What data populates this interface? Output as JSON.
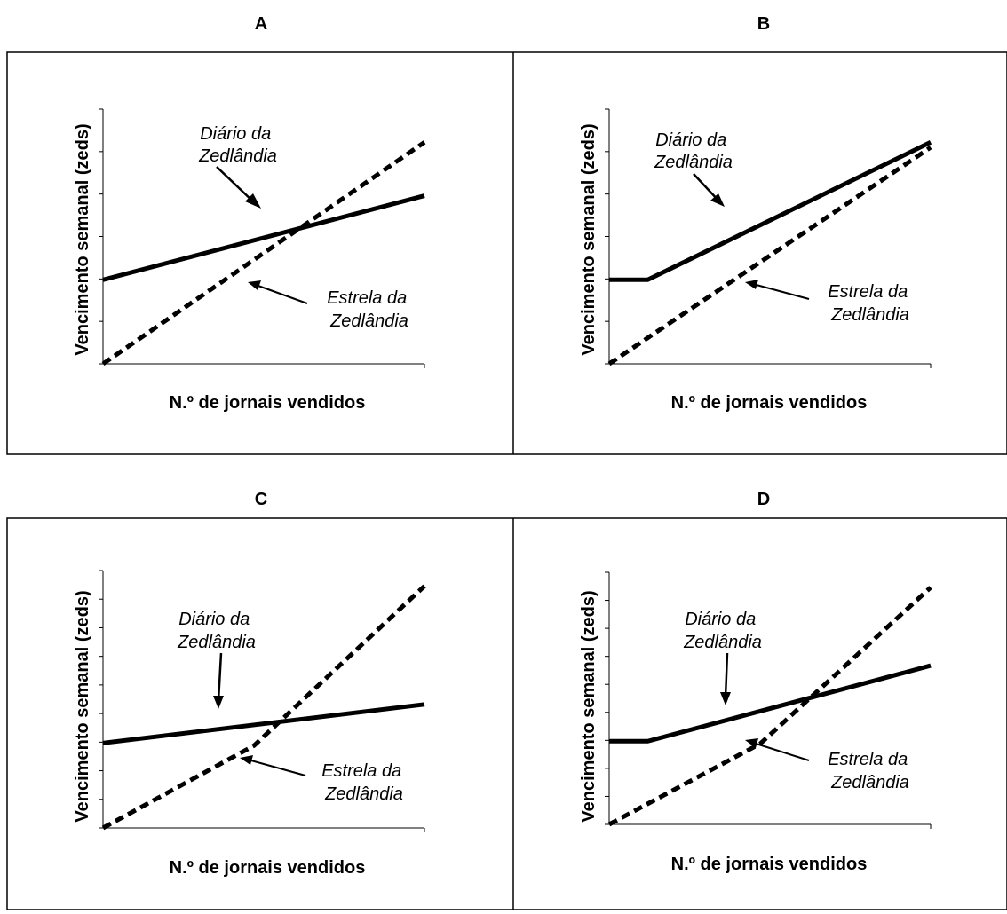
{
  "figure": {
    "panel_labels": [
      "A",
      "B",
      "C",
      "D"
    ],
    "ylabel": "Vencimento semanal (zeds)",
    "xlabel": "N.º de jornais vendidos",
    "series_names": {
      "diario": [
        "Diário da",
        "Zedlândia"
      ],
      "estrela": [
        "Estrela da",
        "Zedlândia"
      ]
    }
  },
  "chart_data": [
    {
      "type": "line",
      "panel": "A",
      "xlim": [
        0,
        100
      ],
      "ylim": [
        0,
        100
      ],
      "yticks": 7,
      "series": [
        {
          "key": "diario",
          "style": "solid",
          "x": [
            0,
            100
          ],
          "y": [
            33,
            66
          ]
        },
        {
          "key": "estrela",
          "style": "dashed",
          "x": [
            0,
            100
          ],
          "y": [
            0,
            87
          ]
        }
      ],
      "annotations": [
        {
          "series": "diario",
          "label_lines": [
            "Diário da",
            "Zedlândia"
          ]
        },
        {
          "series": "estrela",
          "label_lines": [
            "Estrela da",
            "Zedlândia"
          ]
        }
      ]
    },
    {
      "type": "line",
      "panel": "B",
      "xlim": [
        0,
        100
      ],
      "ylim": [
        0,
        100
      ],
      "yticks": 7,
      "series": [
        {
          "key": "diario",
          "style": "solid",
          "x": [
            0,
            12,
            100
          ],
          "y": [
            33,
            33,
            87
          ]
        },
        {
          "key": "estrela",
          "style": "dashed",
          "x": [
            0,
            100
          ],
          "y": [
            0,
            85
          ]
        }
      ],
      "annotations": [
        {
          "series": "diario",
          "label_lines": [
            "Diário da",
            "Zedlândia"
          ]
        },
        {
          "series": "estrela",
          "label_lines": [
            "Estrela da",
            "Zedlândia"
          ]
        }
      ]
    },
    {
      "type": "line",
      "panel": "C",
      "xlim": [
        0,
        100
      ],
      "ylim": [
        0,
        100
      ],
      "yticks": 10,
      "series": [
        {
          "key": "diario",
          "style": "solid",
          "x": [
            0,
            100
          ],
          "y": [
            33,
            48
          ]
        },
        {
          "key": "estrela",
          "style": "dashed",
          "x": [
            0,
            47,
            100
          ],
          "y": [
            0,
            32,
            94
          ]
        }
      ],
      "annotations": [
        {
          "series": "diario",
          "label_lines": [
            "Diário da",
            "Zedlândia"
          ]
        },
        {
          "series": "estrela",
          "label_lines": [
            "Estrela da",
            "Zedlândia"
          ]
        }
      ]
    },
    {
      "type": "line",
      "panel": "D",
      "xlim": [
        0,
        100
      ],
      "ylim": [
        0,
        100
      ],
      "yticks": 10,
      "series": [
        {
          "key": "diario",
          "style": "solid",
          "x": [
            0,
            12,
            100
          ],
          "y": [
            33,
            33,
            63
          ]
        },
        {
          "key": "estrela",
          "style": "dashed",
          "x": [
            0,
            47,
            100
          ],
          "y": [
            0,
            32,
            94
          ]
        }
      ],
      "annotations": [
        {
          "series": "diario",
          "label_lines": [
            "Diário da",
            "Zedlândia"
          ]
        },
        {
          "series": "estrela",
          "label_lines": [
            "Estrela da",
            "Zedlândia"
          ]
        }
      ]
    }
  ]
}
